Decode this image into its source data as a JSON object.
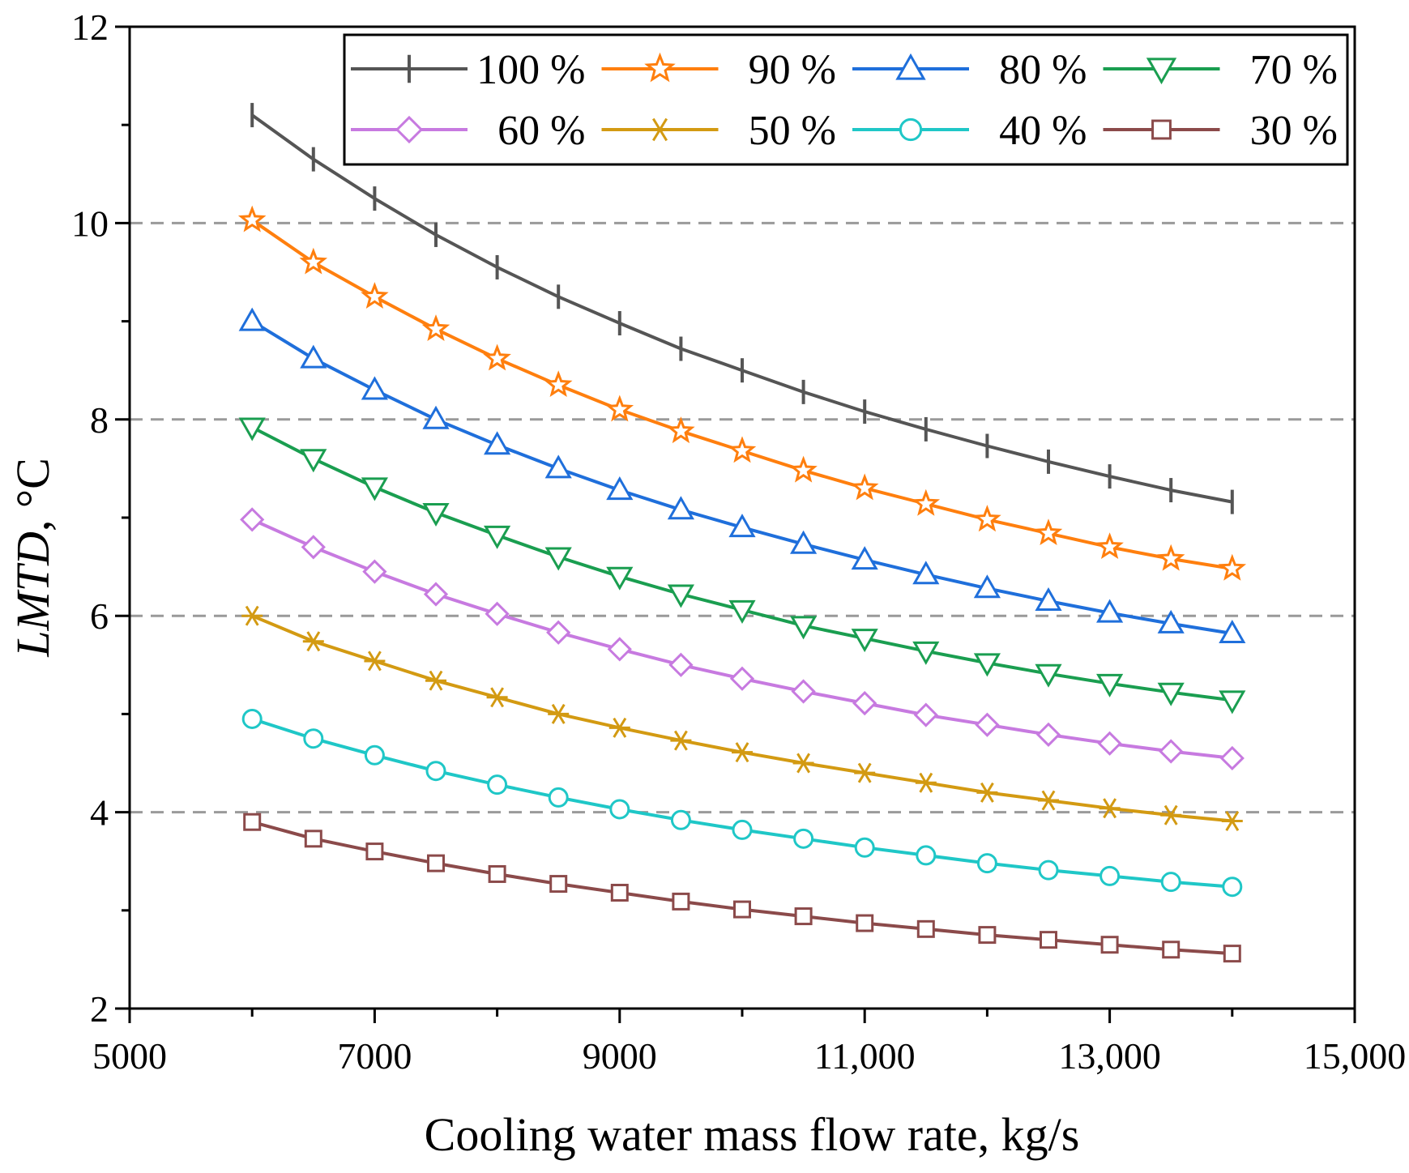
{
  "chart_data": {
    "type": "line",
    "xlabel": "Cooling water mass flow rate, kg/s",
    "ylabel_italic": "LMTD",
    "ylabel_rest": ", °C",
    "xlim": [
      5000,
      15000
    ],
    "ylim": [
      2,
      12
    ],
    "x_ticks": [
      5000,
      7000,
      9000,
      11000,
      13000,
      15000
    ],
    "x_tick_labels": [
      "5000",
      "7000",
      "9000",
      "11,000",
      "13,000",
      "15,000"
    ],
    "y_ticks": [
      2,
      4,
      6,
      8,
      10,
      12
    ],
    "y_tick_labels": [
      "2",
      "4",
      "6",
      "8",
      "10",
      "12"
    ],
    "grid": {
      "y_dashed_at": [
        4,
        6,
        8,
        10
      ]
    },
    "legend_position": "top-right",
    "x": [
      6000,
      6500,
      7000,
      7500,
      8000,
      8500,
      9000,
      9500,
      10000,
      10500,
      11000,
      11500,
      12000,
      12500,
      13000,
      13500,
      14000
    ],
    "series": [
      {
        "name": "100 %",
        "color": "#555555",
        "marker": "plus",
        "values": [
          11.1,
          10.65,
          10.25,
          9.88,
          9.55,
          9.25,
          8.98,
          8.72,
          8.5,
          8.28,
          8.08,
          7.9,
          7.73,
          7.57,
          7.42,
          7.28,
          7.16
        ]
      },
      {
        "name": "90 %",
        "color": "#ff7f0e",
        "marker": "star",
        "values": [
          10.03,
          9.6,
          9.25,
          8.92,
          8.62,
          8.35,
          8.1,
          7.88,
          7.68,
          7.48,
          7.3,
          7.14,
          6.98,
          6.84,
          6.7,
          6.58,
          6.48
        ]
      },
      {
        "name": "80 %",
        "color": "#1f6fdb",
        "marker": "triangle-up",
        "values": [
          9.0,
          8.62,
          8.3,
          8.0,
          7.74,
          7.5,
          7.28,
          7.08,
          6.9,
          6.73,
          6.57,
          6.42,
          6.28,
          6.15,
          6.03,
          5.92,
          5.82
        ]
      },
      {
        "name": "70 %",
        "color": "#1a9e50",
        "marker": "triangle-down",
        "values": [
          7.92,
          7.6,
          7.31,
          7.05,
          6.82,
          6.6,
          6.4,
          6.22,
          6.06,
          5.9,
          5.77,
          5.64,
          5.52,
          5.41,
          5.31,
          5.22,
          5.14
        ]
      },
      {
        "name": "60 %",
        "color": "#c77ae0",
        "marker": "diamond",
        "values": [
          6.98,
          6.7,
          6.45,
          6.22,
          6.02,
          5.83,
          5.66,
          5.5,
          5.36,
          5.23,
          5.11,
          4.99,
          4.89,
          4.79,
          4.7,
          4.62,
          4.55
        ]
      },
      {
        "name": "50 %",
        "color": "#d39a12",
        "marker": "asterisk",
        "values": [
          6.0,
          5.74,
          5.54,
          5.34,
          5.17,
          5.0,
          4.86,
          4.73,
          4.61,
          4.5,
          4.4,
          4.3,
          4.2,
          4.12,
          4.04,
          3.97,
          3.91
        ]
      },
      {
        "name": "40 %",
        "color": "#1fc7c7",
        "marker": "circle",
        "values": [
          4.95,
          4.75,
          4.58,
          4.42,
          4.28,
          4.15,
          4.03,
          3.92,
          3.82,
          3.73,
          3.64,
          3.56,
          3.48,
          3.41,
          3.35,
          3.29,
          3.24
        ]
      },
      {
        "name": "30 %",
        "color": "#8b4a4a",
        "marker": "square",
        "values": [
          3.9,
          3.73,
          3.6,
          3.48,
          3.37,
          3.27,
          3.18,
          3.09,
          3.01,
          2.94,
          2.87,
          2.81,
          2.75,
          2.7,
          2.65,
          2.6,
          2.56
        ]
      }
    ]
  }
}
